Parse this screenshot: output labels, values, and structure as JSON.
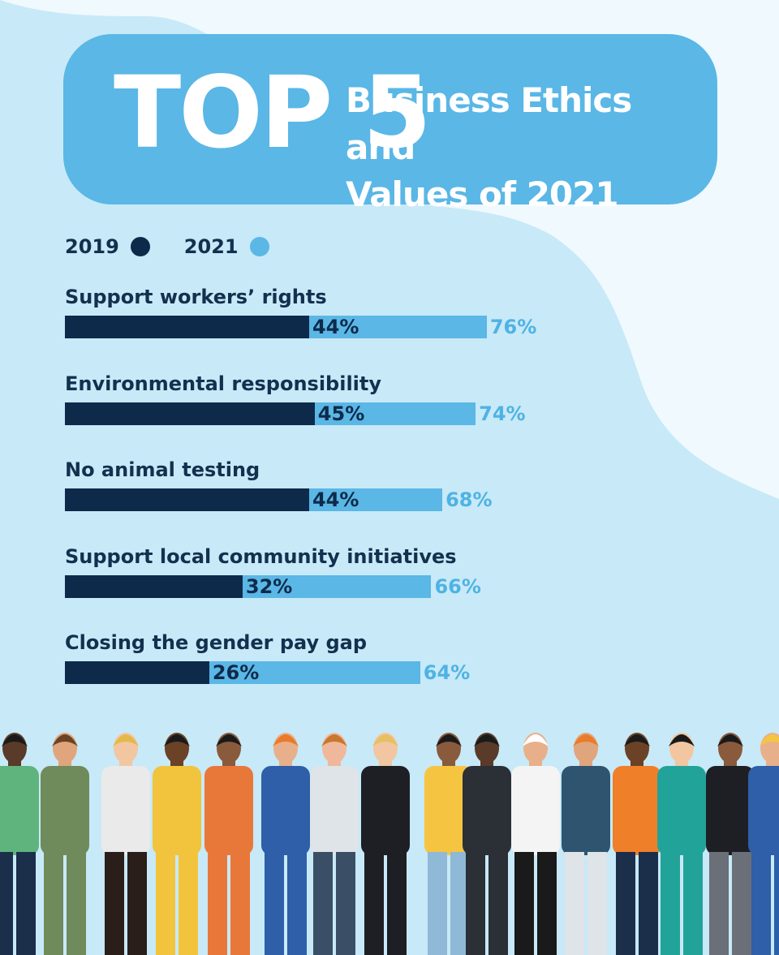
{
  "header": {
    "big": "TOP 5",
    "line1": "Business Ethics and",
    "line2": "Values of 2021"
  },
  "colors": {
    "series_2019": "#0e2a4a",
    "series_2021": "#5ab7e6",
    "label_2021": "#4eb3e4",
    "text": "#13304f",
    "header_bg": "#5ab7e6",
    "blob": "#c8e9f7",
    "page_bg": "#f0f9fd"
  },
  "chart_data": {
    "type": "bar",
    "orientation": "horizontal",
    "categories": [
      "Support workers’ rights",
      "Environmental responsibility",
      "No animal testing",
      "Support local community initiatives",
      "Closing the gender pay gap"
    ],
    "series": [
      {
        "name": "2019",
        "values": [
          44,
          45,
          44,
          32,
          26
        ],
        "labels": [
          "44%",
          "45%",
          "44%",
          "32%",
          "26%"
        ]
      },
      {
        "name": "2021",
        "values": [
          76,
          74,
          68,
          66,
          64
        ],
        "labels": [
          "76%",
          "74%",
          "68%",
          "66%",
          "64%"
        ]
      }
    ],
    "legend": "top-left",
    "grid": false
  }
}
